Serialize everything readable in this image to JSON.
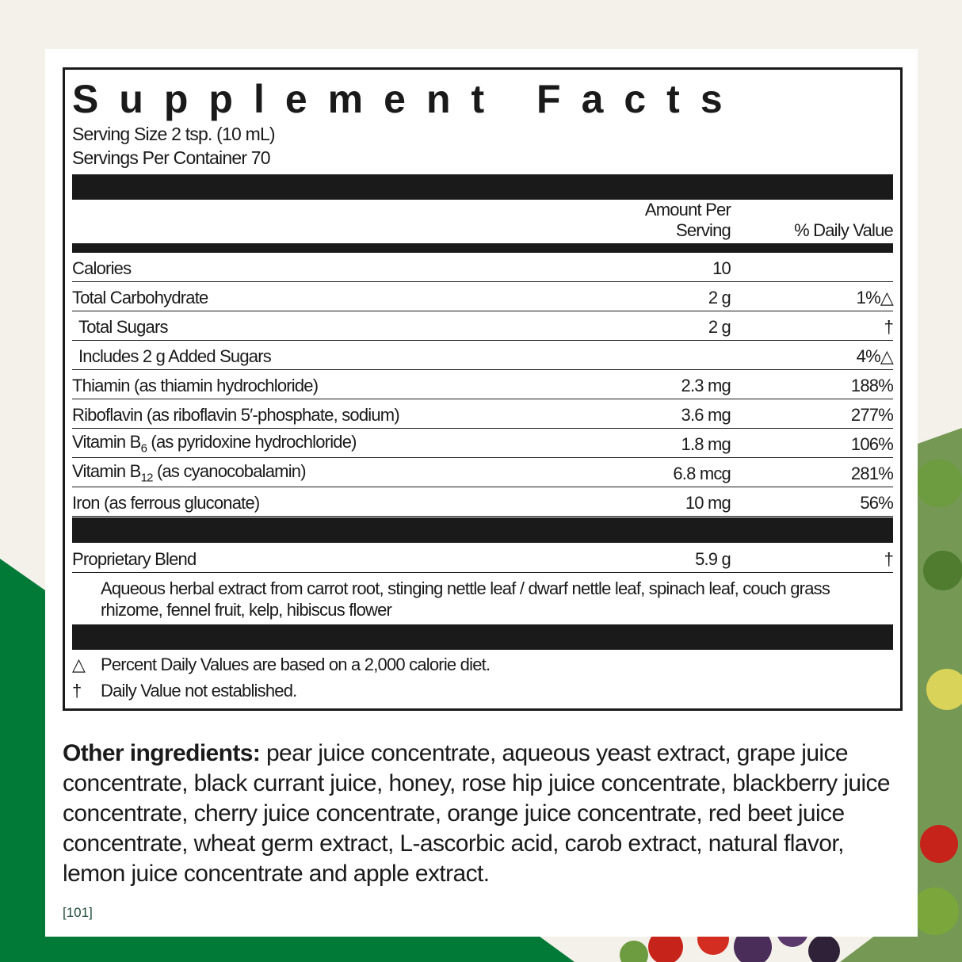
{
  "colors": {
    "brand_green": "#007a36",
    "background": "#f3f1ea"
  },
  "title": "Supplement Facts",
  "serving_size": "Serving Size 2 tsp. (10 mL)",
  "servings_per_container": "Servings Per Container 70",
  "headers": {
    "amount": "Amount Per Serving",
    "dv": "% Daily Value"
  },
  "rows": [
    {
      "name": "Calories",
      "amount": "10",
      "dv": ""
    },
    {
      "name": "Total Carbohydrate",
      "amount": "2 g",
      "dv": "1%△"
    },
    {
      "name": "Total Sugars",
      "amount": "2 g",
      "dv": "†",
      "indent": 1
    },
    {
      "name": "Includes 2 g Added Sugars",
      "amount": "",
      "dv": "4%△",
      "indent": 1
    },
    {
      "name": "Thiamin (as thiamin hydrochloride)",
      "amount": "2.3 mg",
      "dv": "188%"
    },
    {
      "name": "Riboflavin (as riboflavin 5′-phosphate, sodium)",
      "amount": "3.6 mg",
      "dv": "277%"
    },
    {
      "name_pre": "Vitamin B",
      "name_sub": "6",
      "name_post": " (as pyridoxine hydrochloride)",
      "amount": "1.8 mg",
      "dv": "106%"
    },
    {
      "name_pre": "Vitamin B",
      "name_sub": "12",
      "name_post": " (as cyanocobalamin)",
      "amount": "6.8 mcg",
      "dv": "281%"
    },
    {
      "name": "Iron (as ferrous gluconate)",
      "amount": "10 mg",
      "dv": "56%"
    }
  ],
  "blend": {
    "name": "Proprietary Blend",
    "amount": "5.9 g",
    "dv": "†",
    "ingredients": "Aqueous herbal extract from carrot root, stinging nettle leaf / dwarf nettle leaf, spinach leaf, couch grass rhizome, fennel fruit, kelp, hibiscus flower"
  },
  "footnotes": [
    {
      "symbol": "△",
      "text": "Percent Daily Values are based on a 2,000 calorie diet."
    },
    {
      "symbol": "†",
      "text": "Daily Value not established."
    }
  ],
  "other": {
    "label": "Other ingredients:",
    "text": " pear juice concentrate, aqueous yeast extract, grape juice concentrate, black currant juice, honey, rose hip juice concentrate, blackberry juice concentrate, cherry juice concentrate, orange juice concentrate, red beet juice concentrate, wheat germ extract, L-ascorbic acid, carob extract, natural flavor, lemon juice concentrate and apple extract."
  },
  "code": "[101]"
}
